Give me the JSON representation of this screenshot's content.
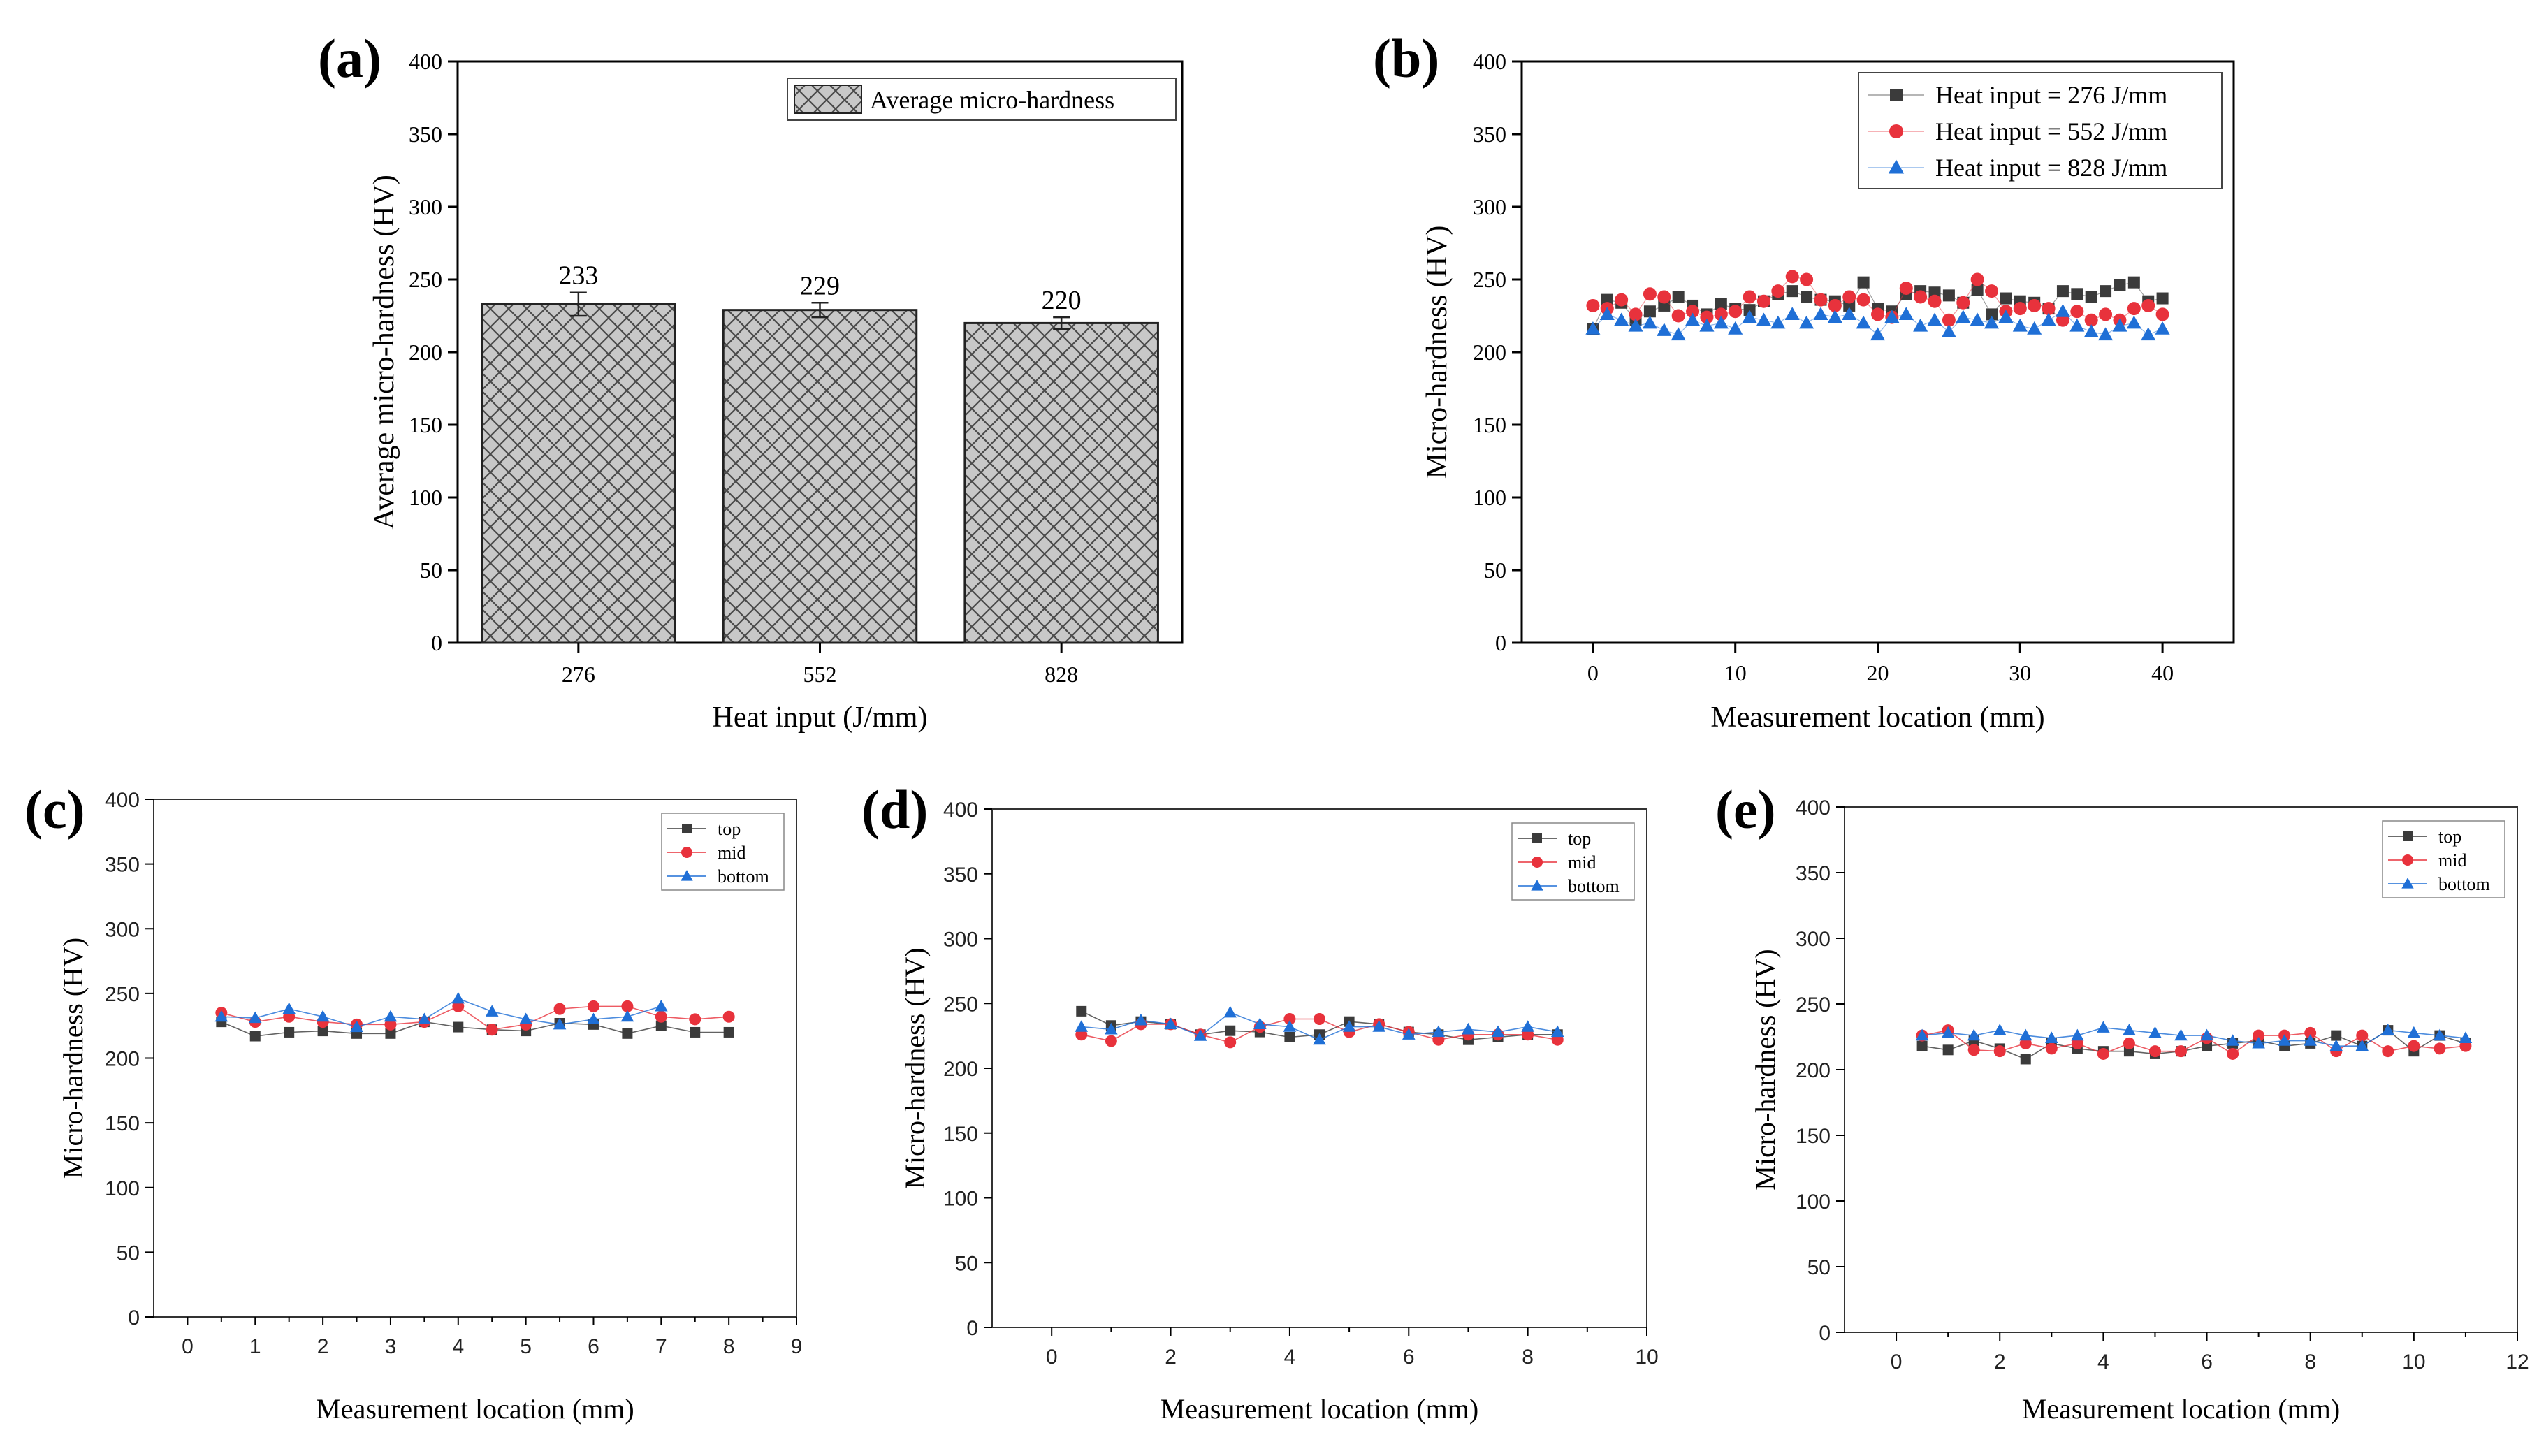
{
  "colors": {
    "top": "#3b3b3b",
    "mid": "#e8323c",
    "bottom": "#1f6fd6",
    "bar_fill": "#c8c8c8",
    "bar_hatch": "#555555"
  },
  "chart_data": [
    {
      "panel": "(a)",
      "type": "bar",
      "xlabel": "Heat input (J/mm)",
      "ylabel": "Average micro-hardness (HV)",
      "ylim": [
        0,
        400
      ],
      "yticks": [
        0,
        50,
        100,
        150,
        200,
        250,
        300,
        350,
        400
      ],
      "categories": [
        "276",
        "552",
        "828"
      ],
      "values": [
        233,
        229,
        220
      ],
      "errors": [
        8,
        5,
        4
      ],
      "data_labels": [
        "233",
        "229",
        "220"
      ],
      "legend": [
        "Average micro-hardness"
      ],
      "legend_position": "top-right",
      "grid": false
    },
    {
      "panel": "(b)",
      "type": "scatter",
      "xlabel": "Measurement location (mm)",
      "ylabel": "Micro-hardness (HV)",
      "xlim": [
        -5,
        45
      ],
      "ylim": [
        0,
        400
      ],
      "xticks": [
        0,
        10,
        20,
        30,
        40
      ],
      "yticks": [
        0,
        50,
        100,
        150,
        200,
        250,
        300,
        350,
        400
      ],
      "x": [
        0,
        1,
        2,
        3,
        4,
        5,
        6,
        7,
        8,
        9,
        10,
        11,
        12,
        13,
        14,
        15,
        16,
        17,
        18,
        19,
        20,
        21,
        22,
        23,
        24,
        25,
        26,
        27,
        28,
        29,
        30,
        31,
        32,
        33,
        34,
        35,
        36,
        37,
        38,
        39,
        40
      ],
      "series": [
        {
          "name": "Heat input = 276 J/mm",
          "key": "top",
          "marker": "square",
          "values": [
            216,
            236,
            234,
            222,
            228,
            232,
            238,
            232,
            226,
            233,
            230,
            229,
            235,
            240,
            242,
            238,
            236,
            235,
            232,
            248,
            230,
            228,
            240,
            242,
            241,
            239,
            234,
            243,
            226,
            237,
            235,
            234,
            230,
            242,
            240,
            238,
            242,
            246,
            248,
            235,
            237
          ]
        },
        {
          "name": "Heat input = 552 J/mm",
          "key": "mid",
          "marker": "circle",
          "values": [
            232,
            230,
            236,
            226,
            240,
            238,
            225,
            228,
            224,
            226,
            228,
            238,
            235,
            242,
            252,
            250,
            236,
            232,
            238,
            236,
            226,
            224,
            244,
            238,
            235,
            222,
            234,
            250,
            242,
            228,
            230,
            232,
            230,
            222,
            228,
            222,
            226,
            222,
            230,
            232,
            226
          ]
        },
        {
          "name": "Heat input = 828 J/mm",
          "key": "bottom",
          "marker": "triangle",
          "values": [
            216,
            226,
            222,
            218,
            220,
            215,
            212,
            222,
            218,
            220,
            216,
            224,
            222,
            220,
            226,
            220,
            226,
            224,
            226,
            220,
            212,
            224,
            226,
            218,
            222,
            214,
            224,
            222,
            220,
            224,
            218,
            216,
            222,
            228,
            218,
            214,
            212,
            218,
            220,
            212,
            216
          ]
        }
      ],
      "legend_position": "top-right",
      "grid": false
    },
    {
      "panel": "(c)",
      "type": "line",
      "xlabel": "Measurement location (mm)",
      "ylabel": "Micro-hardness (HV)",
      "xlim": [
        -0.5,
        9
      ],
      "ylim": [
        0,
        400
      ],
      "xticks": [
        0,
        1,
        2,
        3,
        4,
        5,
        6,
        7,
        8,
        9
      ],
      "yticks": [
        0,
        50,
        100,
        150,
        200,
        250,
        300,
        350,
        400
      ],
      "x": [
        0.5,
        1,
        1.5,
        2,
        2.5,
        3,
        3.5,
        4,
        4.5,
        5,
        5.5,
        6,
        6.5,
        7,
        7.5,
        8
      ],
      "series": [
        {
          "name": "top",
          "key": "top",
          "marker": "square",
          "values": [
            228,
            217,
            220,
            221,
            219,
            219,
            228,
            224,
            222,
            221,
            227,
            226,
            219,
            225,
            220,
            220
          ]
        },
        {
          "name": "mid",
          "key": "mid",
          "marker": "circle",
          "values": [
            235,
            228,
            232,
            228,
            226,
            226,
            228,
            240,
            222,
            226,
            238,
            240,
            240,
            232,
            230,
            232
          ]
        },
        {
          "name": "bottom",
          "key": "bottom",
          "marker": "triangle",
          "values": [
            232,
            231,
            238,
            232,
            224,
            232,
            230,
            246,
            236,
            230,
            226,
            230,
            232,
            240,
            null,
            null
          ]
        }
      ],
      "legend_position": "top-right",
      "grid": false
    },
    {
      "panel": "(d)",
      "type": "line",
      "xlabel": "Measurement location (mm)",
      "ylabel": "Micro-hardness (HV)",
      "xlim": [
        -1,
        10
      ],
      "ylim": [
        0,
        400
      ],
      "xticks": [
        0,
        2,
        4,
        6,
        8,
        10
      ],
      "yticks": [
        0,
        50,
        100,
        150,
        200,
        250,
        300,
        350,
        400
      ],
      "x": [
        0.5,
        1,
        1.5,
        2,
        2.5,
        3,
        3.5,
        4,
        4.5,
        5,
        5.5,
        6,
        6.5,
        7,
        7.5,
        8,
        8.5
      ],
      "series": [
        {
          "name": "top",
          "key": "top",
          "marker": "square",
          "values": [
            244,
            233,
            236,
            234,
            226,
            229,
            228,
            224,
            226,
            236,
            234,
            228,
            226,
            222,
            224,
            226,
            226
          ]
        },
        {
          "name": "mid",
          "key": "mid",
          "marker": "circle",
          "values": [
            226,
            221,
            234,
            234,
            226,
            220,
            232,
            238,
            238,
            228,
            234,
            228,
            222,
            226,
            226,
            226,
            222
          ]
        },
        {
          "name": "bottom",
          "key": "bottom",
          "marker": "triangle",
          "values": [
            232,
            230,
            237,
            234,
            225,
            243,
            234,
            232,
            222,
            232,
            232,
            226,
            228,
            230,
            228,
            232,
            228
          ]
        }
      ],
      "legend_position": "top-right",
      "grid": false
    },
    {
      "panel": "(e)",
      "type": "line",
      "xlabel": "Measurement location (mm)",
      "ylabel": "Micro-hardness (HV)",
      "xlim": [
        -1,
        12
      ],
      "ylim": [
        0,
        400
      ],
      "xticks": [
        0,
        2,
        4,
        6,
        8,
        10,
        12
      ],
      "yticks": [
        0,
        50,
        100,
        150,
        200,
        250,
        300,
        350,
        400
      ],
      "x": [
        0.5,
        1,
        1.5,
        2,
        2.5,
        3,
        3.5,
        4,
        4.5,
        5,
        5.5,
        6,
        6.5,
        7,
        7.5,
        8,
        8.5,
        9,
        9.5,
        10,
        10.5,
        11
      ],
      "series": [
        {
          "name": "top",
          "key": "top",
          "marker": "square",
          "values": [
            218,
            215,
            222,
            216,
            208,
            220,
            216,
            214,
            214,
            212,
            214,
            218,
            220,
            222,
            218,
            220,
            226,
            218,
            230,
            214,
            226,
            220
          ]
        },
        {
          "name": "mid",
          "key": "mid",
          "marker": "circle",
          "values": [
            226,
            230,
            215,
            214,
            220,
            216,
            220,
            212,
            220,
            214,
            214,
            224,
            212,
            226,
            226,
            228,
            214,
            226,
            214,
            218,
            216,
            218
          ]
        },
        {
          "name": "bottom",
          "key": "bottom",
          "marker": "triangle",
          "values": [
            226,
            228,
            226,
            230,
            226,
            224,
            226,
            232,
            230,
            228,
            226,
            226,
            222,
            220,
            222,
            222,
            218,
            218,
            230,
            228,
            226,
            224
          ]
        }
      ],
      "legend_position": "top-right",
      "grid": false
    }
  ]
}
